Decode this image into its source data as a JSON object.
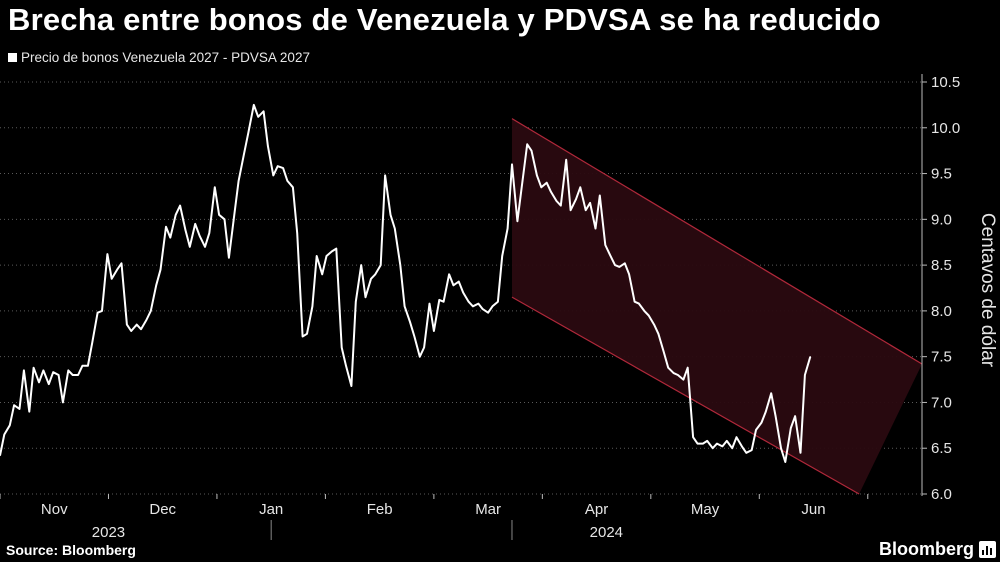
{
  "title": "Brecha entre bonos de Venezuela y PDVSA se ha reducido",
  "legend_label": "Precio de bonos Venezuela 2027 - PDVSA 2027",
  "source": "Source: Bloomberg",
  "brand": "Bloomberg",
  "brand_icon": "bloomberg-chart-icon",
  "colors": {
    "background": "#000000",
    "line": "#ffffff",
    "channel_fill": "#2a0a10",
    "channel_stroke": "#b0283a",
    "grid": "#5a5a5a"
  },
  "chart_data": {
    "type": "line",
    "title": "Brecha entre bonos de Venezuela y PDVSA se ha reducido",
    "ylabel": "Centavos de dólar",
    "xlabel": "",
    "ylim": [
      6.0,
      10.5
    ],
    "yticks": [
      "10.5",
      "10.0",
      "9.5",
      "9.0",
      "8.5",
      "8.0",
      "7.5",
      "7.0",
      "6.5",
      "6.0"
    ],
    "ytick_values": [
      10.5,
      10.0,
      9.5,
      9.0,
      8.5,
      8.0,
      7.5,
      7.0,
      6.5,
      6.0
    ],
    "x_month_labels": [
      "Nov",
      "Dec",
      "Jan",
      "Feb",
      "Mar",
      "Apr",
      "May",
      "Jun"
    ],
    "x_month_positions": [
      0.5,
      1.5,
      2.5,
      3.5,
      4.5,
      5.5,
      6.5,
      7.5
    ],
    "x_year_labels": [
      "2023",
      "2024"
    ],
    "x_year_positions": [
      1.0,
      5.0
    ],
    "x_range": [
      0.0,
      8.5
    ],
    "legend_position": "top-left",
    "series": [
      {
        "name": "Precio de bonos Venezuela 2027 - PDVSA 2027",
        "points": [
          [
            0.0,
            6.42
          ],
          [
            0.04,
            6.65
          ],
          [
            0.09,
            6.75
          ],
          [
            0.13,
            6.97
          ],
          [
            0.18,
            6.93
          ],
          [
            0.22,
            7.35
          ],
          [
            0.27,
            6.9
          ],
          [
            0.31,
            7.38
          ],
          [
            0.36,
            7.22
          ],
          [
            0.4,
            7.35
          ],
          [
            0.45,
            7.2
          ],
          [
            0.49,
            7.33
          ],
          [
            0.54,
            7.3
          ],
          [
            0.58,
            7.0
          ],
          [
            0.63,
            7.35
          ],
          [
            0.67,
            7.3
          ],
          [
            0.72,
            7.3
          ],
          [
            0.76,
            7.4
          ],
          [
            0.81,
            7.4
          ],
          [
            0.85,
            7.65
          ],
          [
            0.9,
            7.98
          ],
          [
            0.94,
            8.0
          ],
          [
            0.99,
            8.62
          ],
          [
            1.03,
            8.35
          ],
          [
            1.08,
            8.45
          ],
          [
            1.12,
            8.52
          ],
          [
            1.17,
            7.85
          ],
          [
            1.21,
            7.78
          ],
          [
            1.26,
            7.85
          ],
          [
            1.3,
            7.8
          ],
          [
            1.35,
            7.9
          ],
          [
            1.39,
            8.0
          ],
          [
            1.44,
            8.28
          ],
          [
            1.48,
            8.45
          ],
          [
            1.53,
            8.92
          ],
          [
            1.57,
            8.8
          ],
          [
            1.62,
            9.05
          ],
          [
            1.66,
            9.15
          ],
          [
            1.71,
            8.88
          ],
          [
            1.75,
            8.7
          ],
          [
            1.8,
            8.95
          ],
          [
            1.84,
            8.82
          ],
          [
            1.89,
            8.7
          ],
          [
            1.93,
            8.85
          ],
          [
            1.98,
            9.35
          ],
          [
            2.02,
            9.05
          ],
          [
            2.07,
            9.0
          ],
          [
            2.11,
            8.58
          ],
          [
            2.16,
            9.05
          ],
          [
            2.2,
            9.42
          ],
          [
            2.25,
            9.72
          ],
          [
            2.29,
            9.95
          ],
          [
            2.34,
            10.25
          ],
          [
            2.38,
            10.12
          ],
          [
            2.43,
            10.18
          ],
          [
            2.47,
            9.8
          ],
          [
            2.52,
            9.48
          ],
          [
            2.56,
            9.58
          ],
          [
            2.61,
            9.56
          ],
          [
            2.65,
            9.42
          ],
          [
            2.7,
            9.35
          ],
          [
            2.74,
            8.85
          ],
          [
            2.79,
            7.72
          ],
          [
            2.83,
            7.75
          ],
          [
            2.88,
            8.05
          ],
          [
            2.92,
            8.6
          ],
          [
            2.97,
            8.4
          ],
          [
            3.01,
            8.6
          ],
          [
            3.06,
            8.65
          ],
          [
            3.1,
            8.68
          ],
          [
            3.15,
            7.6
          ],
          [
            3.19,
            7.4
          ],
          [
            3.24,
            7.18
          ],
          [
            3.28,
            8.1
          ],
          [
            3.33,
            8.5
          ],
          [
            3.37,
            8.15
          ],
          [
            3.42,
            8.35
          ],
          [
            3.46,
            8.4
          ],
          [
            3.51,
            8.5
          ],
          [
            3.55,
            9.48
          ],
          [
            3.6,
            9.05
          ],
          [
            3.64,
            8.9
          ],
          [
            3.69,
            8.5
          ],
          [
            3.73,
            8.05
          ],
          [
            3.78,
            7.88
          ],
          [
            3.82,
            7.72
          ],
          [
            3.87,
            7.5
          ],
          [
            3.91,
            7.6
          ],
          [
            3.96,
            8.08
          ],
          [
            4.0,
            7.78
          ],
          [
            4.05,
            8.12
          ],
          [
            4.09,
            8.1
          ],
          [
            4.14,
            8.4
          ],
          [
            4.18,
            8.28
          ],
          [
            4.23,
            8.32
          ],
          [
            4.27,
            8.2
          ],
          [
            4.32,
            8.1
          ],
          [
            4.36,
            8.05
          ],
          [
            4.41,
            8.08
          ],
          [
            4.45,
            8.02
          ],
          [
            4.5,
            7.98
          ],
          [
            4.54,
            8.05
          ],
          [
            4.59,
            8.1
          ],
          [
            4.63,
            8.6
          ],
          [
            4.68,
            8.9
          ],
          [
            4.72,
            9.6
          ],
          [
            4.77,
            8.98
          ],
          [
            4.81,
            9.35
          ],
          [
            4.86,
            9.82
          ],
          [
            4.9,
            9.75
          ],
          [
            4.95,
            9.48
          ],
          [
            4.99,
            9.35
          ],
          [
            5.04,
            9.4
          ],
          [
            5.08,
            9.3
          ],
          [
            5.13,
            9.2
          ],
          [
            5.17,
            9.15
          ],
          [
            5.22,
            9.65
          ],
          [
            5.26,
            9.1
          ],
          [
            5.31,
            9.22
          ],
          [
            5.35,
            9.35
          ],
          [
            5.4,
            9.1
          ],
          [
            5.44,
            9.18
          ],
          [
            5.49,
            8.9
          ],
          [
            5.53,
            9.26
          ],
          [
            5.58,
            8.72
          ],
          [
            5.62,
            8.62
          ],
          [
            5.67,
            8.5
          ],
          [
            5.71,
            8.48
          ],
          [
            5.76,
            8.52
          ],
          [
            5.8,
            8.4
          ],
          [
            5.85,
            8.1
          ],
          [
            5.89,
            8.08
          ],
          [
            5.94,
            8.0
          ],
          [
            5.98,
            7.95
          ],
          [
            6.03,
            7.85
          ],
          [
            6.07,
            7.75
          ],
          [
            6.12,
            7.55
          ],
          [
            6.16,
            7.38
          ],
          [
            6.21,
            7.32
          ],
          [
            6.25,
            7.3
          ],
          [
            6.3,
            7.25
          ],
          [
            6.34,
            7.38
          ],
          [
            6.39,
            6.62
          ],
          [
            6.43,
            6.55
          ],
          [
            6.48,
            6.55
          ],
          [
            6.52,
            6.58
          ],
          [
            6.57,
            6.5
          ],
          [
            6.61,
            6.55
          ],
          [
            6.66,
            6.52
          ],
          [
            6.7,
            6.58
          ],
          [
            6.75,
            6.5
          ],
          [
            6.79,
            6.62
          ],
          [
            6.84,
            6.52
          ],
          [
            6.88,
            6.45
          ],
          [
            6.93,
            6.48
          ],
          [
            6.97,
            6.7
          ],
          [
            7.02,
            6.78
          ],
          [
            7.06,
            6.9
          ],
          [
            7.11,
            7.1
          ],
          [
            7.15,
            6.85
          ],
          [
            7.2,
            6.5
          ],
          [
            7.24,
            6.35
          ],
          [
            7.29,
            6.72
          ],
          [
            7.33,
            6.85
          ],
          [
            7.38,
            6.45
          ],
          [
            7.42,
            7.3
          ],
          [
            7.47,
            7.5
          ]
        ]
      }
    ],
    "channel": {
      "upper": [
        [
          4.72,
          10.1
        ],
        [
          8.5,
          7.42
        ]
      ],
      "lower": [
        [
          4.72,
          8.15
        ],
        [
          7.92,
          6.0
        ]
      ]
    }
  }
}
